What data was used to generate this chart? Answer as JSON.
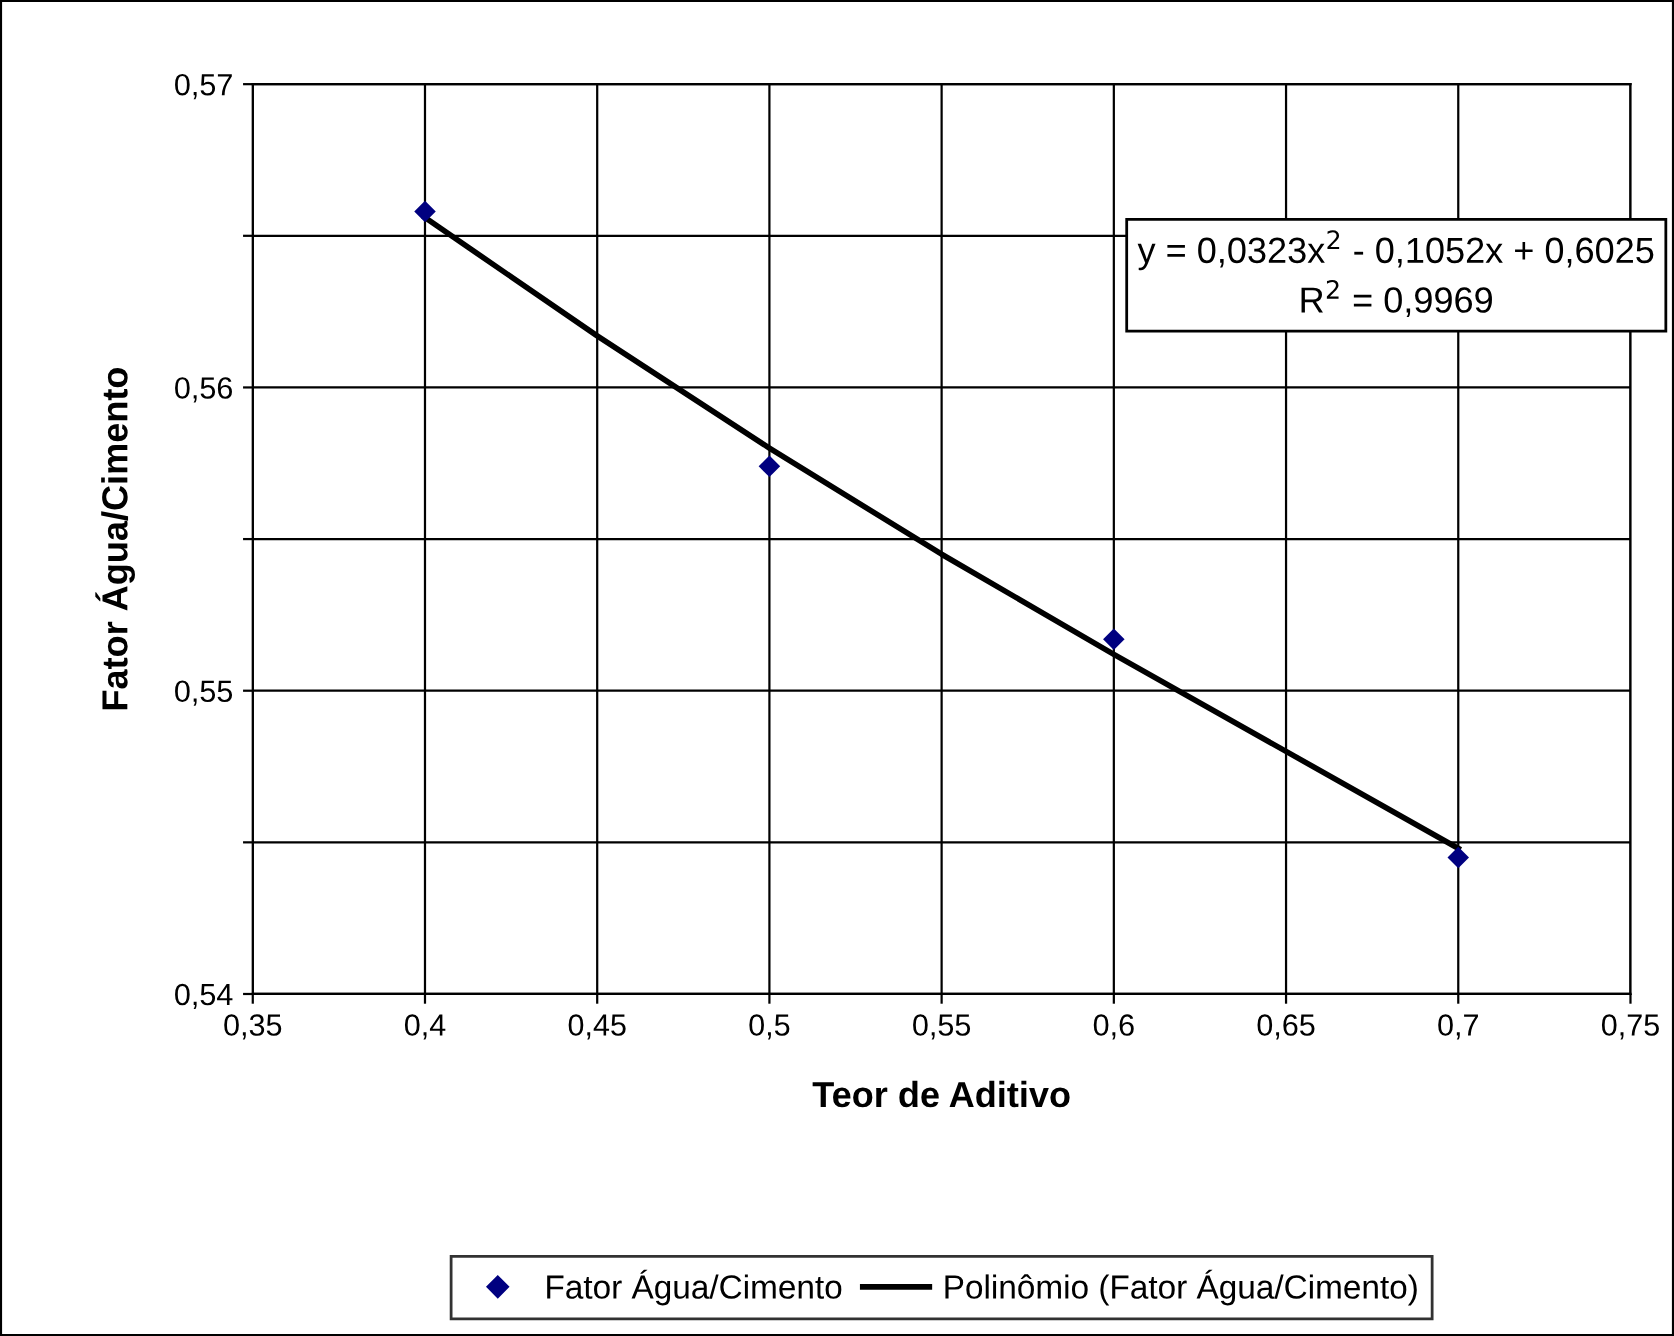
{
  "chart_data": {
    "type": "scatter",
    "xlabel": "Teor de Aditivo",
    "ylabel": "Fator Água/Cimento",
    "xlim": [
      0.35,
      0.75
    ],
    "ylim": [
      0.54,
      0.57
    ],
    "xticks": [
      {
        "value": 0.35,
        "label": "0,35"
      },
      {
        "value": 0.4,
        "label": "0,4"
      },
      {
        "value": 0.45,
        "label": "0,45"
      },
      {
        "value": 0.5,
        "label": "0,5"
      },
      {
        "value": 0.55,
        "label": "0,55"
      },
      {
        "value": 0.6,
        "label": "0,6"
      },
      {
        "value": 0.65,
        "label": "0,65"
      },
      {
        "value": 0.7,
        "label": "0,7"
      },
      {
        "value": 0.75,
        "label": "0,75"
      }
    ],
    "yticks": [
      {
        "value": 0.54,
        "label": "0,54"
      },
      {
        "value": 0.545,
        "label": null
      },
      {
        "value": 0.55,
        "label": "0,55"
      },
      {
        "value": 0.555,
        "label": null
      },
      {
        "value": 0.56,
        "label": "0,56"
      },
      {
        "value": 0.565,
        "label": null
      },
      {
        "value": 0.57,
        "label": "0,57"
      }
    ],
    "grid": true,
    "legend": "bottom",
    "series": [
      {
        "name": "Fator Água/Cimento",
        "marker": "diamond",
        "color": "#000080",
        "x": [
          0.4,
          0.5,
          0.6,
          0.7
        ],
        "values": [
          0.5658,
          0.5574,
          0.5517,
          0.5445
        ]
      },
      {
        "name": "Polinômio (Fator Água/Cimento)",
        "type": "line",
        "marker": "none",
        "line_style": "solid",
        "color": "#000000",
        "x": [
          0.4,
          0.45,
          0.5,
          0.55,
          0.6,
          0.65,
          0.7
        ],
        "values": [
          0.5656,
          0.5617,
          0.558,
          0.5545,
          0.5512,
          0.548,
          0.5448
        ]
      }
    ],
    "annotations": [
      "y = 0,0323x$^{2}$ - 0,1052x + 0,6025",
      "R$^{2}$ = 0,9969"
    ]
  }
}
